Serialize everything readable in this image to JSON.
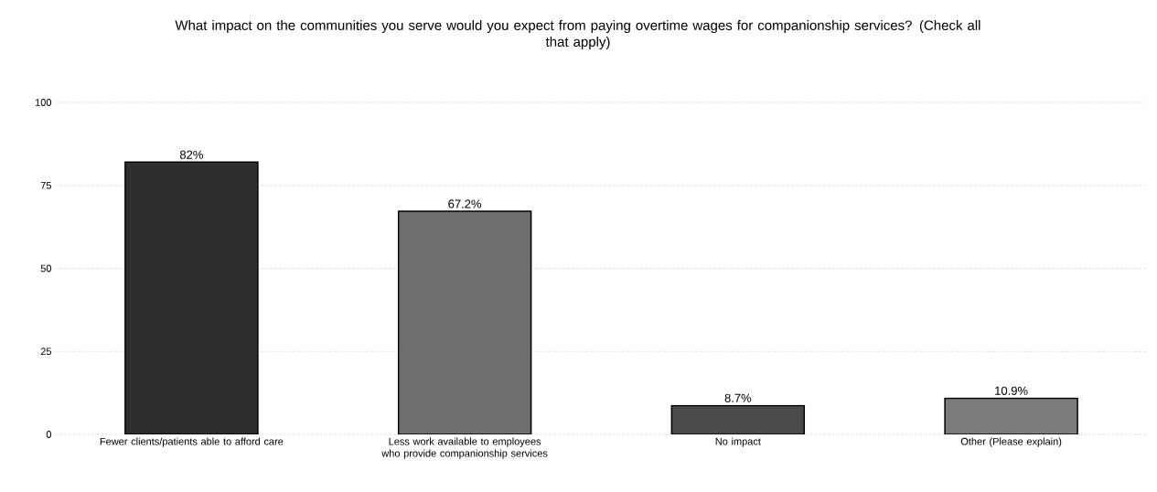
{
  "chart_data": {
    "type": "bar",
    "title": "What impact on the communities you serve would you expect from paying overtime wages for companionship services? (Check all that apply)",
    "categories": [
      "Fewer clients/patients able to afford care",
      "Less work available to employees who provide companionship services",
      "No impact",
      "Other (Please explain)"
    ],
    "values": [
      82,
      67.2,
      8.7,
      10.9
    ],
    "value_labels": [
      "82%",
      "67.2%",
      "8.7%",
      "10.9%"
    ],
    "colors": [
      "#2e2e2e",
      "#6e6e6e",
      "#4a4a4a",
      "#7c7c7c"
    ],
    "ylim": [
      0,
      100
    ],
    "yticks": [
      0,
      25,
      50,
      75,
      100
    ],
    "grid": "y"
  }
}
